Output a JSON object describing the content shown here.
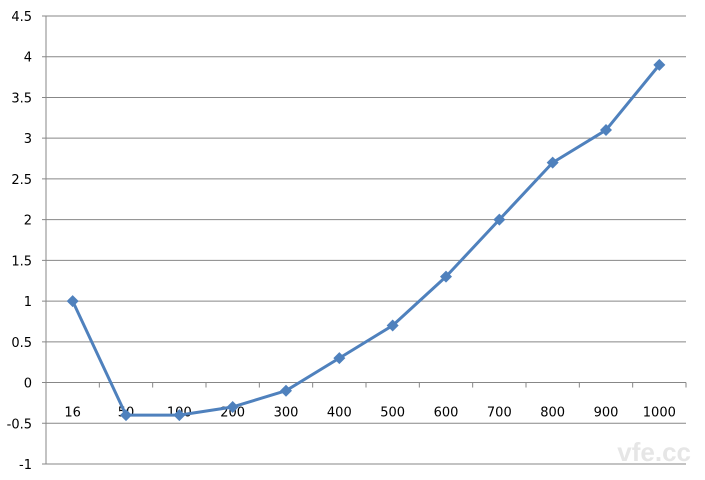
{
  "chart_data": {
    "type": "line",
    "title": "",
    "xlabel": "",
    "ylabel": "",
    "categories": [
      "16",
      "50",
      "100",
      "200",
      "300",
      "400",
      "500",
      "600",
      "700",
      "800",
      "900",
      "1000"
    ],
    "series": [
      {
        "values": [
          1,
          -0.4,
          -0.4,
          -0.3,
          -0.1,
          0.3,
          0.7,
          1.3,
          2.0,
          2.7,
          3.1,
          3.9
        ]
      }
    ],
    "ylim": [
      -1,
      4.5
    ],
    "yticks": [
      -1,
      -0.5,
      0,
      0.5,
      1,
      1.5,
      2,
      2.5,
      3,
      3.5,
      4,
      4.5
    ],
    "grid": true,
    "legend": "none",
    "marker": "diamond",
    "color": "#4F81BD",
    "watermark": "vfe.cc"
  }
}
